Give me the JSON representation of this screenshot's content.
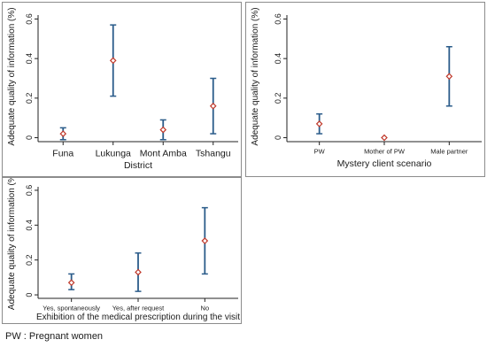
{
  "footnote": "PW : Pregnant women",
  "colors": {
    "error_bar": "#2b5c8a",
    "point": "#c0392b",
    "axis": "#222222",
    "panel_border": "#8c8c8c"
  },
  "chart_data": [
    {
      "type": "scatter",
      "subtype": "point-with-error-bars",
      "title": "",
      "xlabel": "District",
      "ylabel": "Adequate quality of information (%)",
      "ylim": [
        -0.02,
        0.62
      ],
      "yticks": [
        0,
        0.2,
        0.4,
        0.6
      ],
      "ytick_labels": [
        "0",
        "0.2",
        "0.4",
        "0.6"
      ],
      "grid": false,
      "categories": [
        "Funa",
        "Lukunga",
        "Mont Amba",
        "Tshangu"
      ],
      "values": [
        0.02,
        0.39,
        0.04,
        0.16
      ],
      "lower": [
        -0.01,
        0.21,
        -0.01,
        0.02
      ],
      "upper": [
        0.05,
        0.57,
        0.09,
        0.3
      ]
    },
    {
      "type": "scatter",
      "subtype": "point-with-error-bars",
      "title": "",
      "xlabel": "Mystery client scenario",
      "ylabel": "Adequate quality of information (%)",
      "ylim": [
        -0.02,
        0.62
      ],
      "yticks": [
        0,
        0.2,
        0.4,
        0.6
      ],
      "ytick_labels": [
        "0",
        "0.2",
        "0.4",
        "0.6"
      ],
      "grid": false,
      "categories": [
        "PW",
        "Mother of PW",
        "Male partner"
      ],
      "values": [
        0.07,
        0.0,
        0.31
      ],
      "lower": [
        0.02,
        null,
        0.16
      ],
      "upper": [
        0.12,
        null,
        0.46
      ]
    },
    {
      "type": "scatter",
      "subtype": "point-with-error-bars",
      "title": "",
      "xlabel": "Exhibition of the medical prescription during the visit",
      "ylabel": "Adequate quality of information (%)",
      "ylim": [
        -0.02,
        0.62
      ],
      "yticks": [
        0,
        0.2,
        0.4,
        0.6
      ],
      "ytick_labels": [
        "0",
        "0.2",
        "0.4",
        "0.6"
      ],
      "grid": false,
      "categories": [
        "Yes, spontaneously",
        "Yes, after request",
        "No"
      ],
      "values": [
        0.07,
        0.13,
        0.31
      ],
      "lower": [
        0.03,
        0.02,
        0.12
      ],
      "upper": [
        0.12,
        0.24,
        0.5
      ]
    }
  ]
}
